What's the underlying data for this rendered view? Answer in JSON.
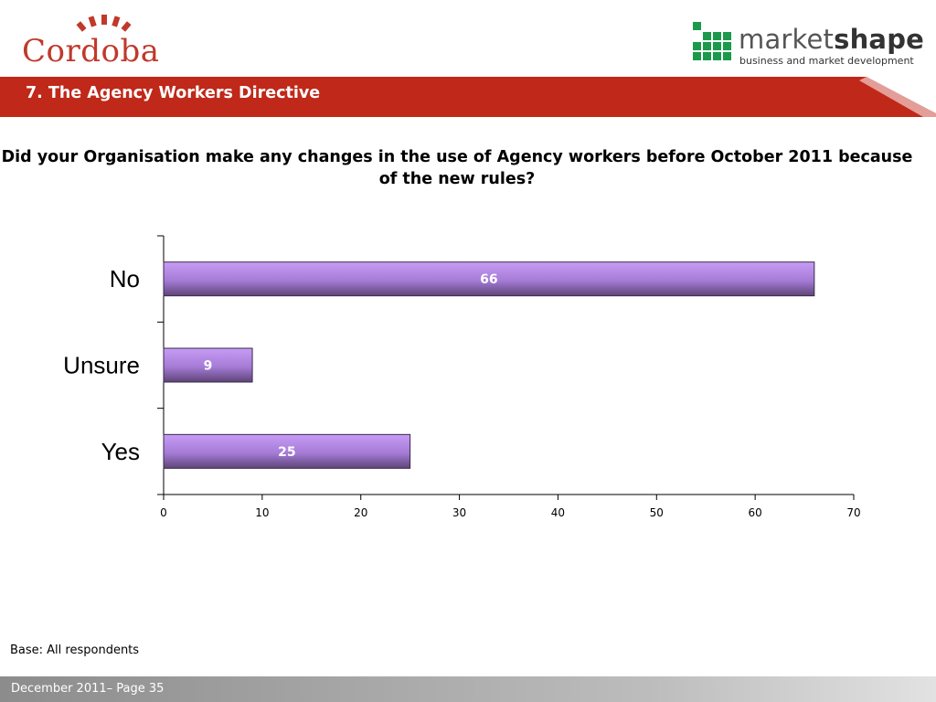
{
  "header": {
    "brand_left": "Cordoba",
    "brand_right_light": "market",
    "brand_right_bold": "shape",
    "brand_right_tagline": "business and market development",
    "section_title": "7.  The Agency Workers Directive"
  },
  "colors": {
    "banner": "#c0281a",
    "bar_fill": "#b388e8",
    "bar_edge": "#5a3f73",
    "footer": "#9a9a9a"
  },
  "chart_data": {
    "type": "bar",
    "orientation": "horizontal",
    "title": "Did your Organisation make any changes in the use of Agency workers before October 2011 because of the new rules?",
    "categories": [
      "No",
      "Unsure",
      "Yes"
    ],
    "values": [
      66,
      9,
      25
    ],
    "data_labels": [
      "66",
      "9",
      "25"
    ],
    "xlim": [
      0,
      70
    ],
    "x_ticks": [
      "0",
      "10",
      "20",
      "30",
      "40",
      "50",
      "60",
      "70"
    ],
    "grid": false,
    "legend": "none"
  },
  "note": "Base: All respondents",
  "footer": "December 2011– Page 35"
}
